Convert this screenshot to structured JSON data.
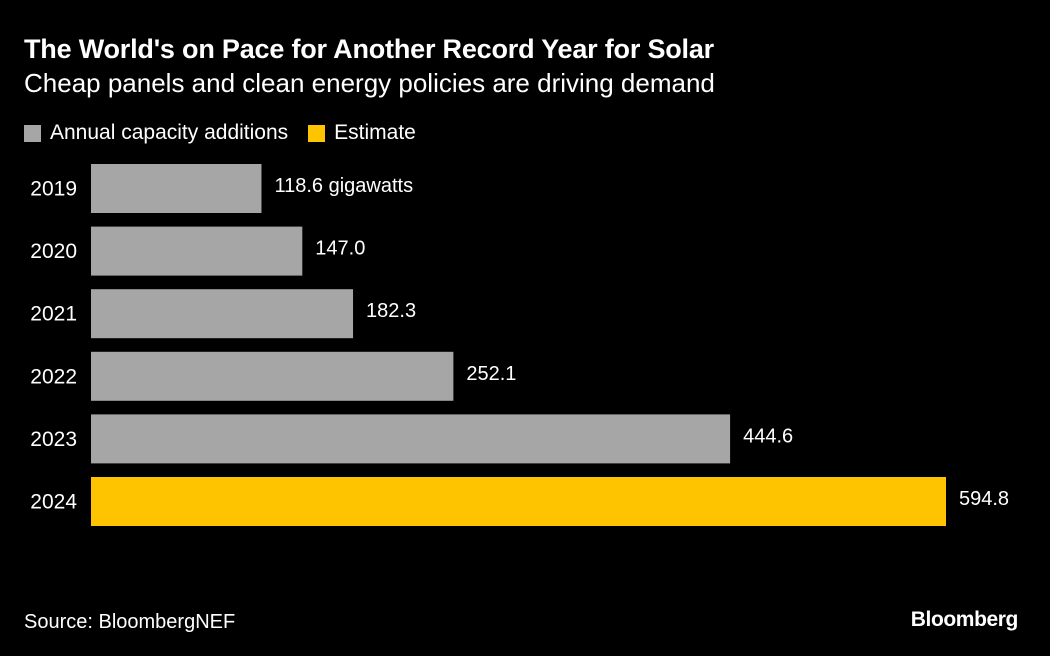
{
  "chart_data": {
    "type": "bar",
    "orientation": "horizontal",
    "title": "The World's on Pace for Another Record Year for Solar",
    "subtitle": "Cheap panels and clean energy policies are driving demand",
    "categories": [
      "2019",
      "2020",
      "2021",
      "2022",
      "2023",
      "2024"
    ],
    "values": [
      118.6,
      147.0,
      182.3,
      252.1,
      444.6,
      594.8
    ],
    "value_labels": [
      "118.6 gigawatts",
      "147.0",
      "182.3",
      "252.1",
      "444.6",
      "594.8"
    ],
    "bar_kinds": [
      "annual",
      "annual",
      "annual",
      "annual",
      "annual",
      "estimate"
    ],
    "legend": [
      {
        "kind": "annual",
        "label": "Annual capacity additions",
        "color": "#a6a6a6"
      },
      {
        "kind": "estimate",
        "label": "Estimate",
        "color": "#ffc400"
      }
    ],
    "legend_position": "top-left",
    "xlim": [
      0,
      594.8
    ],
    "grid": false,
    "source": "Source: BloombergNEF"
  },
  "branding": {
    "logo_text": "Bloomberg"
  },
  "colors": {
    "background": "#000000",
    "text": "#ffffff",
    "annual": "#a6a6a6",
    "estimate": "#ffc400"
  }
}
